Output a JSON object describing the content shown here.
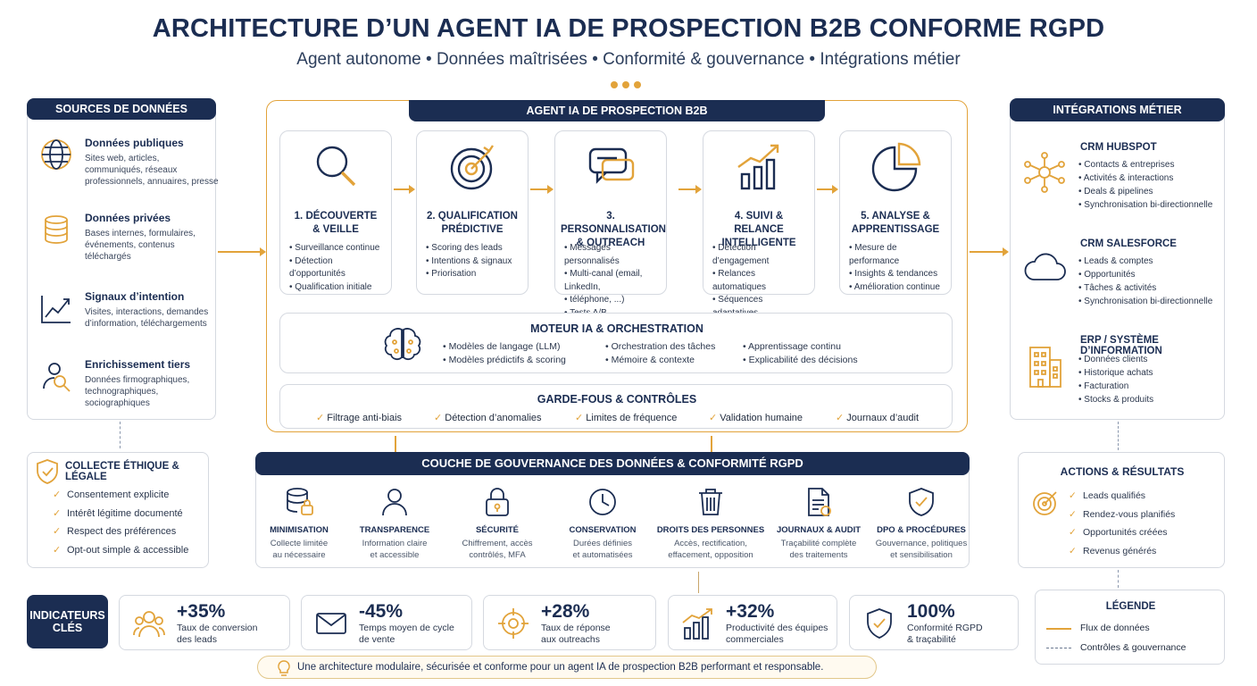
{
  "header": {
    "title": "ARCHITECTURE D’UN AGENT IA DE PROSPECTION B2B CONFORME RGPD",
    "subtitle": "Agent autonome • Données maîtrisées • Conformité & gouvernance • Intégrations métier"
  },
  "sources": {
    "title": "SOURCES DE DONNÉES",
    "items": [
      {
        "title": "Données publiques",
        "desc": "Sites web, articles, communiqués, réseaux professionnels, annuaires, presse",
        "icon": "globe-icon"
      },
      {
        "title": "Données privées",
        "desc": "Bases internes, formulaires, événements, contenus téléchargés",
        "icon": "database-icon"
      },
      {
        "title": "Signaux d’intention",
        "desc": "Visites, interactions, demandes d’information, téléchargements",
        "icon": "trend-icon"
      },
      {
        "title": "Enrichissement tiers",
        "desc": "Données firmographiques, technographiques, sociographiques",
        "icon": "user-search-icon"
      }
    ]
  },
  "ethics": {
    "title": "COLLECTE ÉTHIQUE & LÉGALE",
    "items": [
      "Consentement explicite",
      "Intérêt légitime documenté",
      "Respect des préférences",
      "Opt-out simple & accessible"
    ]
  },
  "agent": {
    "title": "AGENT IA DE PROSPECTION B2B",
    "steps": [
      {
        "title_line1": "1. DÉCOUVERTE",
        "title_line2": "& VEILLE",
        "items": [
          "Surveillance continue",
          "Détection d’opportunités",
          "Qualification initiale"
        ],
        "icon": "magnifier-icon"
      },
      {
        "title_line1": "2. QUALIFICATION",
        "title_line2": "PRÉDICTIVE",
        "items": [
          "Scoring des leads",
          "Intentions & signaux",
          "Priorisation"
        ],
        "icon": "target-icon"
      },
      {
        "title_line1": "3. PERSONNALISATION",
        "title_line2": "& OUTREACH",
        "items": [
          "Messages personnalisés",
          "Multi-canal (email, LinkedIn,",
          "téléphone, ...)",
          "Tests A/B"
        ],
        "icon": "chat-icon"
      },
      {
        "title_line1": "4. SUIVI & RELANCE",
        "title_line2": "INTELLIGENTE",
        "items": [
          "Détection d’engagement",
          "Relances automatiques",
          "Séquences adaptatives"
        ],
        "icon": "growth-chart-icon"
      },
      {
        "title_line1": "5. ANALYSE &",
        "title_line2": "APPRENTISSAGE",
        "items": [
          "Mesure de performance",
          "Insights & tendances",
          "Amélioration continue"
        ],
        "icon": "pie-chart-icon"
      }
    ],
    "engine": {
      "title": "MOTEUR IA & ORCHESTRATION",
      "col1": [
        "Modèles de langage (LLM)",
        "Modèles prédictifs & scoring"
      ],
      "col2": [
        "Orchestration des tâches",
        "Mémoire & contexte"
      ],
      "col3": [
        "Apprentissage continu",
        "Explicabilité des décisions"
      ]
    },
    "guards": {
      "title": "GARDE-FOUS & CONTRÔLES",
      "items": [
        "Filtrage anti-biais",
        "Détection d’anomalies",
        "Limites de fréquence",
        "Validation humaine",
        "Journaux d’audit"
      ]
    }
  },
  "governance": {
    "title": "COUCHE DE GOUVERNANCE DES DONNÉES & CONFORMITÉ RGPD",
    "items": [
      {
        "title": "MINIMISATION",
        "l1": "Collecte limitée",
        "l2": "au nécessaire",
        "icon": "database-lock-icon"
      },
      {
        "title": "TRANSPARENCE",
        "l1": "Information claire",
        "l2": "et accessible",
        "icon": "person-icon"
      },
      {
        "title": "SÉCURITÉ",
        "l1": "Chiffrement, accès",
        "l2": "contrôlés, MFA",
        "icon": "padlock-icon"
      },
      {
        "title": "CONSERVATION",
        "l1": "Durées définies",
        "l2": "et automatisées",
        "icon": "clock-icon"
      },
      {
        "title": "DROITS DES PERSONNES",
        "l1": "Accès, rectification,",
        "l2": "effacement, opposition",
        "icon": "trash-icon"
      },
      {
        "title": "JOURNAUX & AUDIT",
        "l1": "Traçabilité complète",
        "l2": "des traitements",
        "icon": "document-icon"
      },
      {
        "title": "DPO & PROCÉDURES",
        "l1": "Gouvernance, politiques",
        "l2": "et sensibilisation",
        "icon": "shield-check-icon"
      }
    ]
  },
  "integrations": {
    "title": "INTÉGRATIONS MÉTIER",
    "blocks": [
      {
        "title": "CRM HUBSPOT",
        "items": [
          "Contacts & entreprises",
          "Activités & interactions",
          "Deals & pipelines",
          "Synchronisation bi-directionnelle"
        ],
        "icon": "hubspot-icon"
      },
      {
        "title": "CRM SALESFORCE",
        "items": [
          "Leads & comptes",
          "Opportunités",
          "Tâches & activités",
          "Synchronisation bi-directionnelle"
        ],
        "icon": "cloud-icon"
      },
      {
        "title": "ERP / SYSTÈME D’INFORMATION",
        "items": [
          "Données clients",
          "Historique achats",
          "Facturation",
          "Stocks & produits"
        ],
        "icon": "building-icon"
      }
    ]
  },
  "results": {
    "title": "ACTIONS & RÉSULTATS",
    "items": [
      "Leads qualifiés",
      "Rendez-vous planifiés",
      "Opportunités créées",
      "Revenus générés"
    ]
  },
  "kpis": {
    "label_line1": "INDICATEURS",
    "label_line2": "CLÉS",
    "items": [
      {
        "value": "+35%",
        "l1": "Taux de conversion",
        "l2": "des leads",
        "icon": "group-icon"
      },
      {
        "value": "-45%",
        "l1": "Temps moyen de cycle",
        "l2": "de vente",
        "icon": "envelope-icon"
      },
      {
        "value": "+28%",
        "l1": "Taux de réponse",
        "l2": "aux outreachs",
        "icon": "crosshair-icon"
      },
      {
        "value": "+32%",
        "l1": "Productivité des équipes",
        "l2": "commerciales",
        "icon": "bar-growth-icon"
      },
      {
        "value": "100%",
        "l1": "Conformité RGPD",
        "l2": "& traçabilité",
        "icon": "shield-check-icon"
      }
    ]
  },
  "legend": {
    "title": "LÉGENDE",
    "flow": "Flux de données",
    "controls": "Contrôles & gouvernance"
  },
  "footer": {
    "text": "Une architecture modulaire, sécurisée et conforme pour un agent IA de prospection B2B performant et responsable."
  },
  "colors": {
    "navy": "#1b2d52",
    "gold": "#e2a33a"
  }
}
